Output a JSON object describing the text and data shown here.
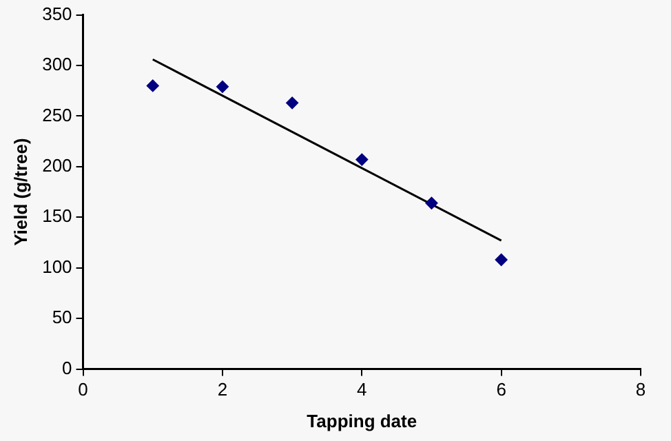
{
  "chart_data": {
    "type": "scatter",
    "xlabel": "Tapping date",
    "ylabel": "Yield (g/tree)",
    "series": [
      {
        "color": "#000080",
        "marker": "diamond",
        "x": [
          1,
          2,
          3,
          4,
          5,
          6
        ],
        "values": [
          280,
          279,
          263,
          207,
          164,
          108
        ]
      },
      {
        "type": "line",
        "color": "#000000",
        "marker": "none",
        "line_style": "solid",
        "x": [
          1,
          6
        ],
        "values": [
          306,
          127
        ]
      }
    ],
    "xlim": [
      0,
      8
    ],
    "xticks": [
      0,
      2,
      4,
      6,
      8
    ],
    "ylim": [
      0,
      350
    ],
    "yticks": [
      0,
      50,
      100,
      150,
      200,
      250,
      300,
      350
    ],
    "grid": false,
    "legend": false
  }
}
